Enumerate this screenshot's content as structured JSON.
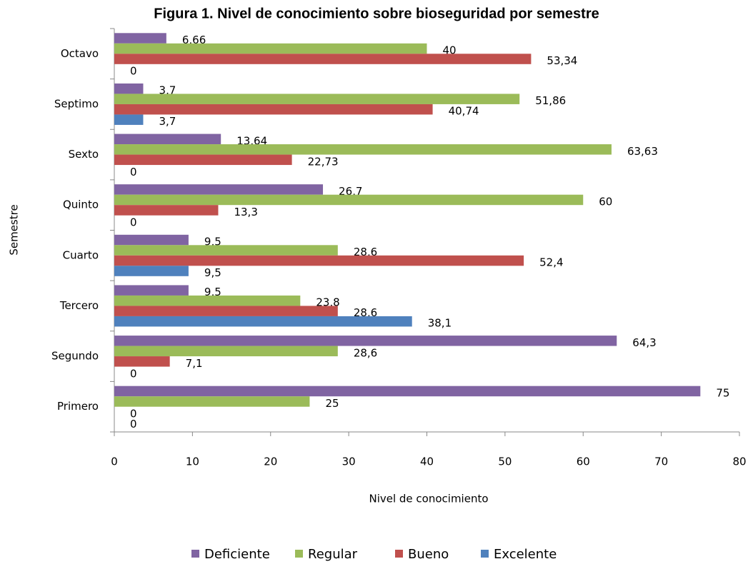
{
  "chart_data": {
    "type": "barh",
    "title": "Figura 1. Nivel de conocimiento sobre bioseguridad por semestre",
    "xlabel": "Nivel de conocimiento",
    "ylabel": "Semestre",
    "categories": [
      "Primero",
      "Segundo",
      "Tercero",
      "Cuarto",
      "Quinto",
      "Sexto",
      "Septimo",
      "Octavo"
    ],
    "series": [
      {
        "name": "Deficiente",
        "color": "#8064a2",
        "values": [
          75,
          64.3,
          9.5,
          9.5,
          26.7,
          13.64,
          3.7,
          6.66
        ],
        "value_labels": [
          "75",
          "64,3",
          "9,5",
          "9,5",
          "26,7",
          "13,64",
          "3,7",
          "6,66"
        ]
      },
      {
        "name": "Regular",
        "color": "#9bbb59",
        "values": [
          25,
          28.6,
          23.8,
          28.6,
          60,
          63.63,
          51.86,
          40
        ],
        "value_labels": [
          "25",
          "28,6",
          "23,8",
          "28,6",
          "60",
          "63,63",
          "51,86",
          "40"
        ]
      },
      {
        "name": "Bueno",
        "color": "#c0504d",
        "values": [
          0,
          7.1,
          28.6,
          52.4,
          13.3,
          22.73,
          40.74,
          53.34
        ],
        "value_labels": [
          "0",
          "7,1",
          "28,6",
          "52,4",
          "13,3",
          "22,73",
          "40,74",
          "53,34"
        ]
      },
      {
        "name": "Excelente",
        "color": "#4f81bd",
        "values": [
          0,
          0,
          38.1,
          9.5,
          0,
          0,
          3.7,
          0
        ],
        "value_labels": [
          "0",
          "0",
          "38,1",
          "9,5",
          "0",
          "0",
          "3,7",
          "0"
        ]
      }
    ],
    "xlim": [
      0,
      80
    ],
    "xticks": [
      0,
      10,
      20,
      30,
      40,
      50,
      60,
      70,
      80
    ],
    "grid": false,
    "legend": "bottom"
  }
}
